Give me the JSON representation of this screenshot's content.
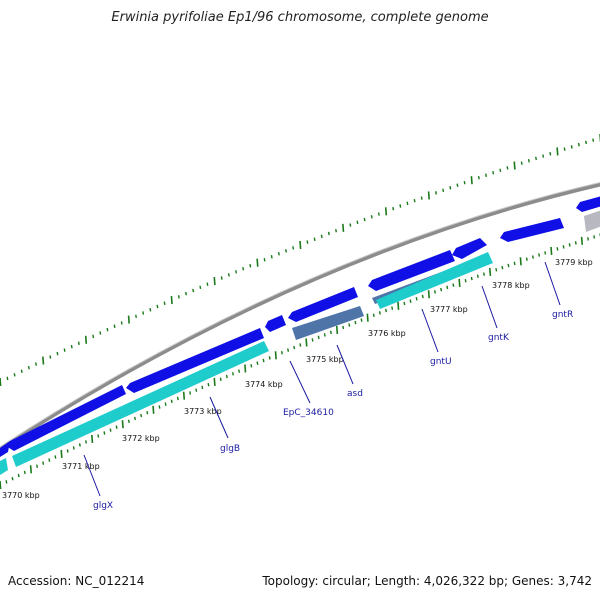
{
  "title": "Erwinia pyrifoliae Ep1/96 chromosome, complete genome",
  "footer": {
    "accession": "Accession: NC_012214",
    "topology": "Topology: circular; Length: 4,026,322 bp; Genes: 3,742"
  },
  "colors": {
    "backbone": "#8c8c8c",
    "gene_forward": "#1010e6",
    "gene_pseudo": "#b8b8c0",
    "cds_cyan": "#1ecccc",
    "cds_steel": "#4e74a8",
    "ticks": "#1a7a1a",
    "labels": "#1a1aa0"
  },
  "ruler_labels": [
    "3770 kbp",
    "3771 kbp",
    "3772 kbp",
    "3773 kbp",
    "3774 kbp",
    "3775 kbp",
    "3776 kbp",
    "3777 kbp",
    "3778 kbp",
    "3779 kbp"
  ],
  "gene_labels": [
    "glgX",
    "glgB",
    "EpC_34610",
    "asd",
    "gntU",
    "gntK",
    "gntR"
  ]
}
